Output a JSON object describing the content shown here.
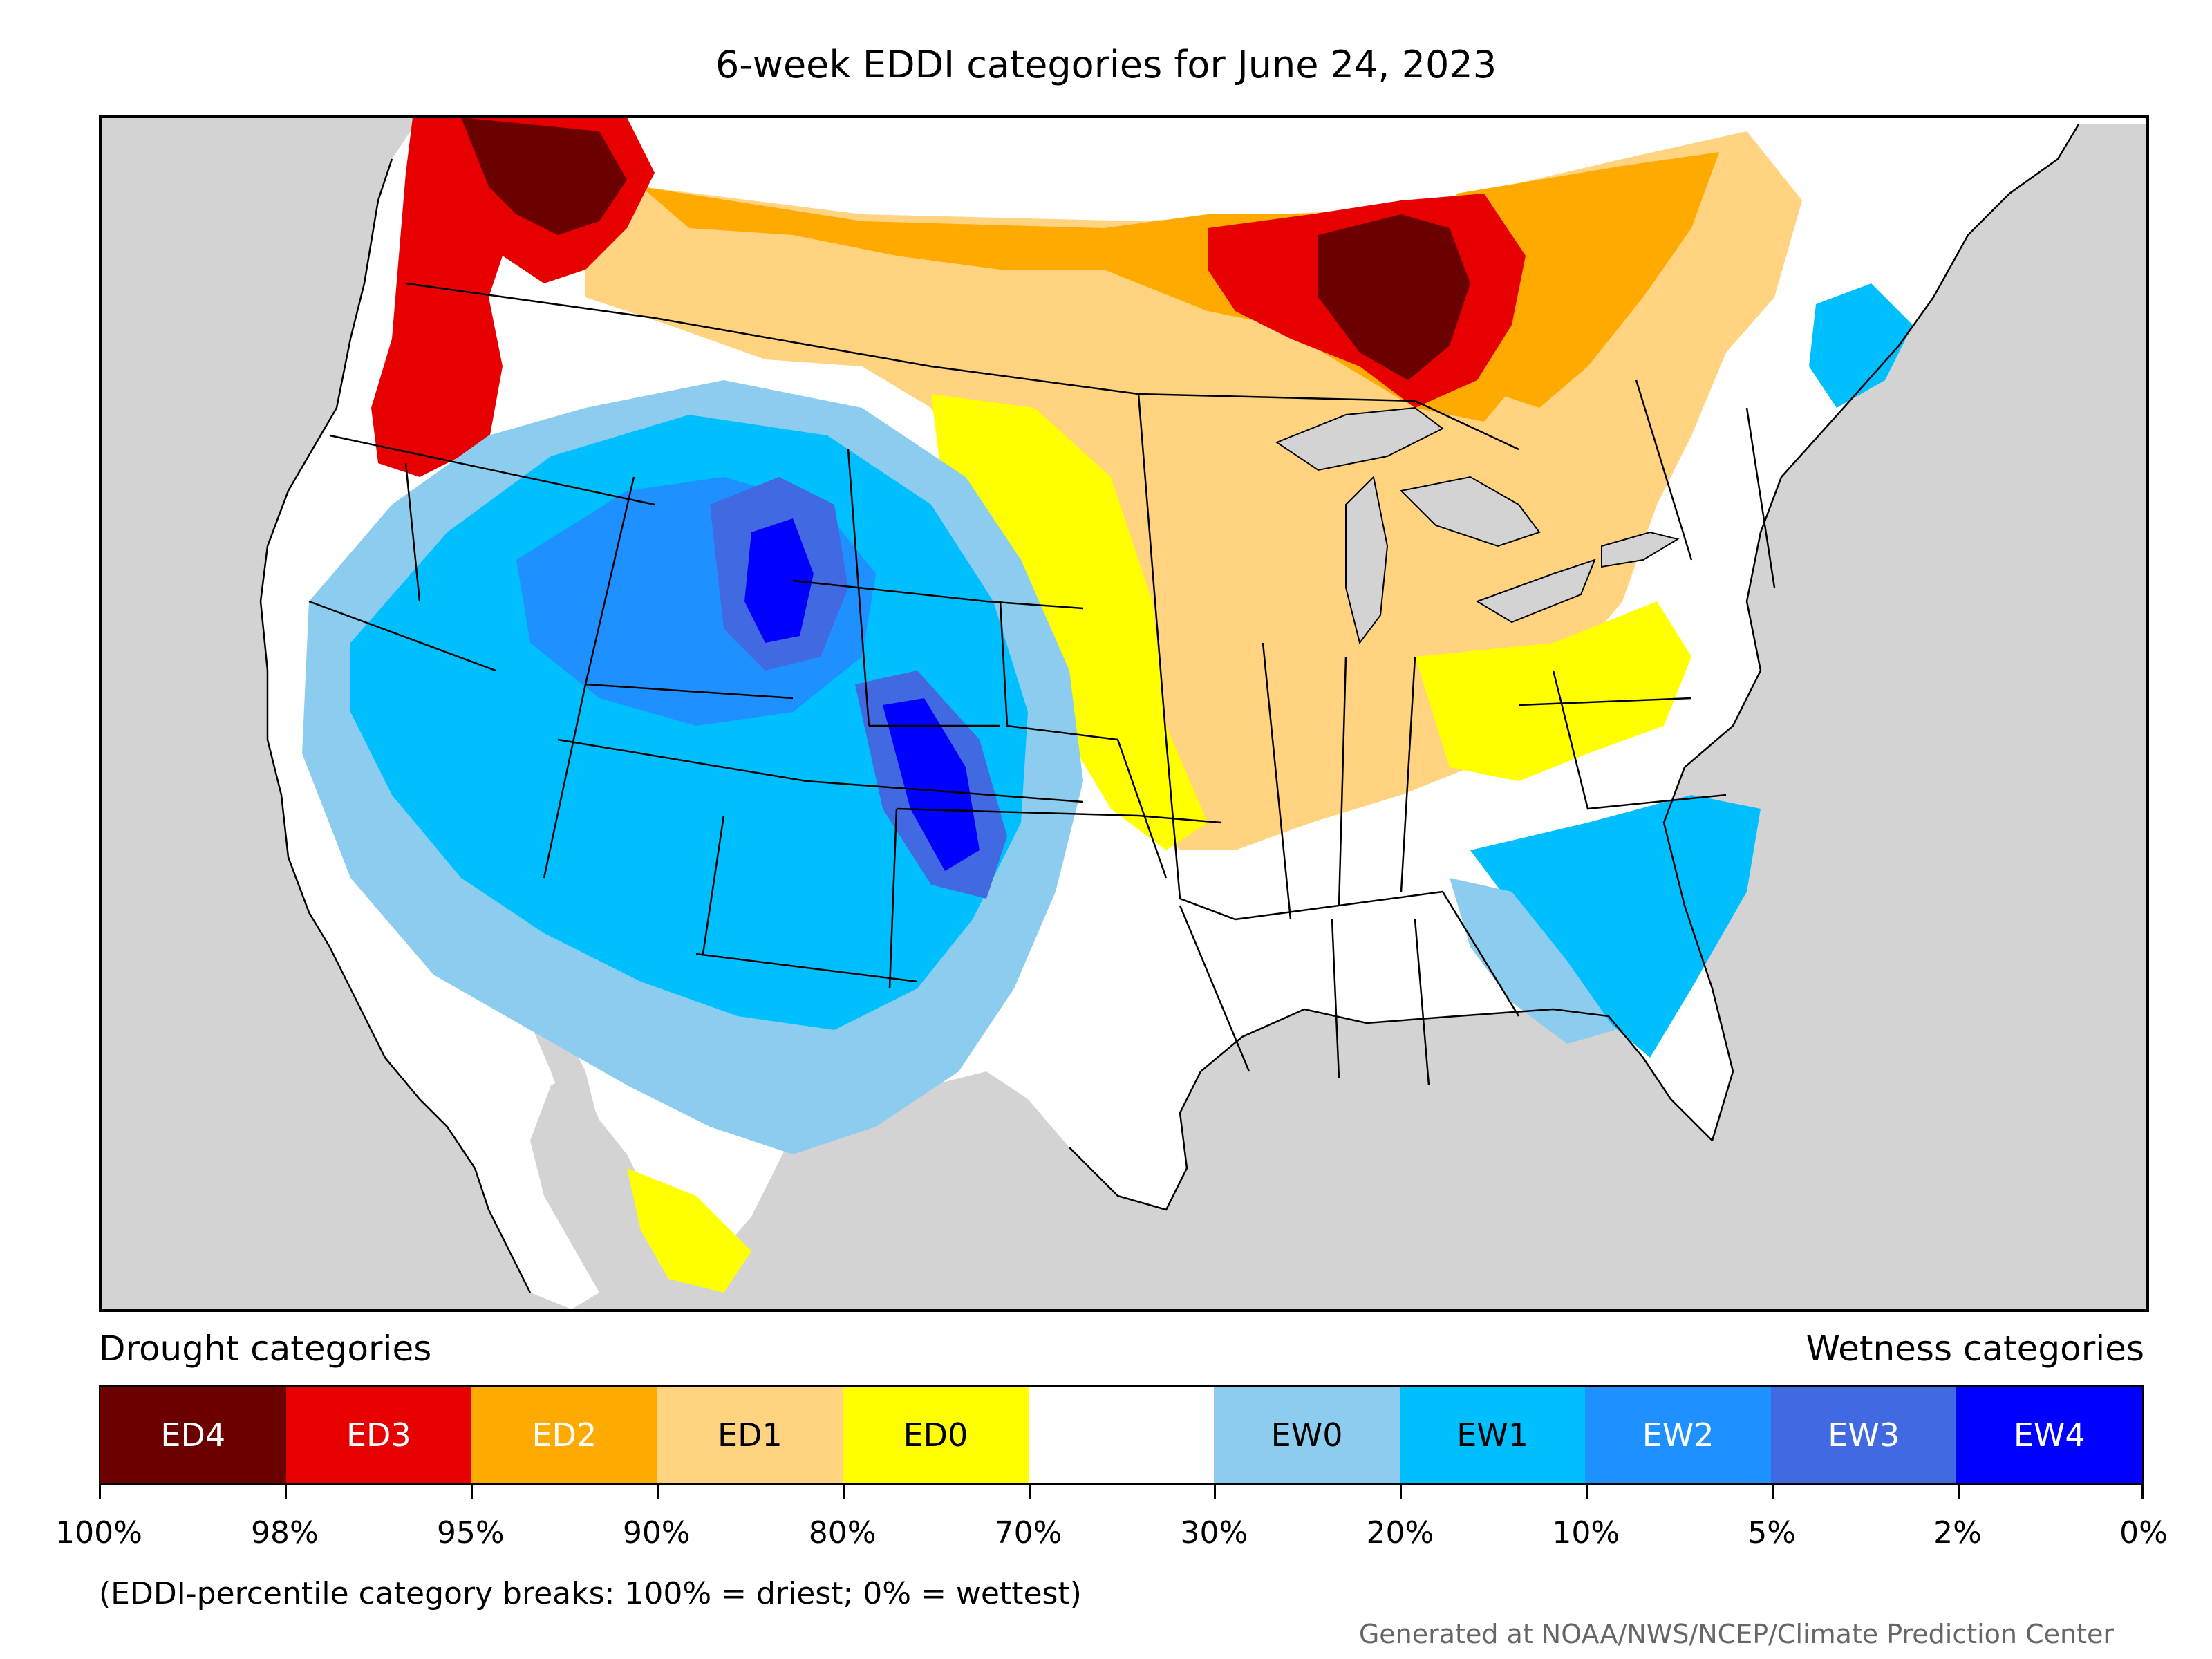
{
  "title": "6-week EDDI categories for June 24, 2023",
  "legend": {
    "drought_heading": "Drought categories",
    "wetness_heading": "Wetness categories",
    "categories": [
      {
        "label": "ED4",
        "color": "#6b0000",
        "text_color": "#ffffff"
      },
      {
        "label": "ED3",
        "color": "#e60000",
        "text_color": "#ffffff"
      },
      {
        "label": "ED2",
        "color": "#ffaa00",
        "text_color": "#ffffff"
      },
      {
        "label": "ED1",
        "color": "#ffd37f",
        "text_color": "#000000"
      },
      {
        "label": "ED0",
        "color": "#ffff00",
        "text_color": "#000000"
      },
      {
        "label": "",
        "color": "#ffffff",
        "text_color": "#000000"
      },
      {
        "label": "EW0",
        "color": "#8ccdef",
        "text_color": "#000000"
      },
      {
        "label": "EW1",
        "color": "#00bfff",
        "text_color": "#000000"
      },
      {
        "label": "EW2",
        "color": "#1e90ff",
        "text_color": "#ffffff"
      },
      {
        "label": "EW3",
        "color": "#4169e1",
        "text_color": "#ffffff"
      },
      {
        "label": "EW4",
        "color": "#0000ff",
        "text_color": "#ffffff"
      }
    ],
    "breaks": [
      "100%",
      "98%",
      "95%",
      "90%",
      "80%",
      "70%",
      "30%",
      "20%",
      "10%",
      "5%",
      "2%",
      "0%"
    ]
  },
  "footnote": "(EDDI-percentile category breaks: 100% = driest; 0% = wettest)",
  "credit": "Generated at NOAA/NWS/NCEP/Climate Prediction Center",
  "map": {
    "background_color": "#d3d3d3",
    "region_colors": {
      "ED4": "#6b0000",
      "ED3": "#e60000",
      "ED2": "#ffaa00",
      "ED1": "#ffd37f",
      "ED0": "#ffff00",
      "normal": "#ffffff",
      "EW0": "#8ccdef",
      "EW1": "#00bfff",
      "EW2": "#1e90ff",
      "EW3": "#4169e1",
      "EW4": "#0000ff"
    }
  }
}
